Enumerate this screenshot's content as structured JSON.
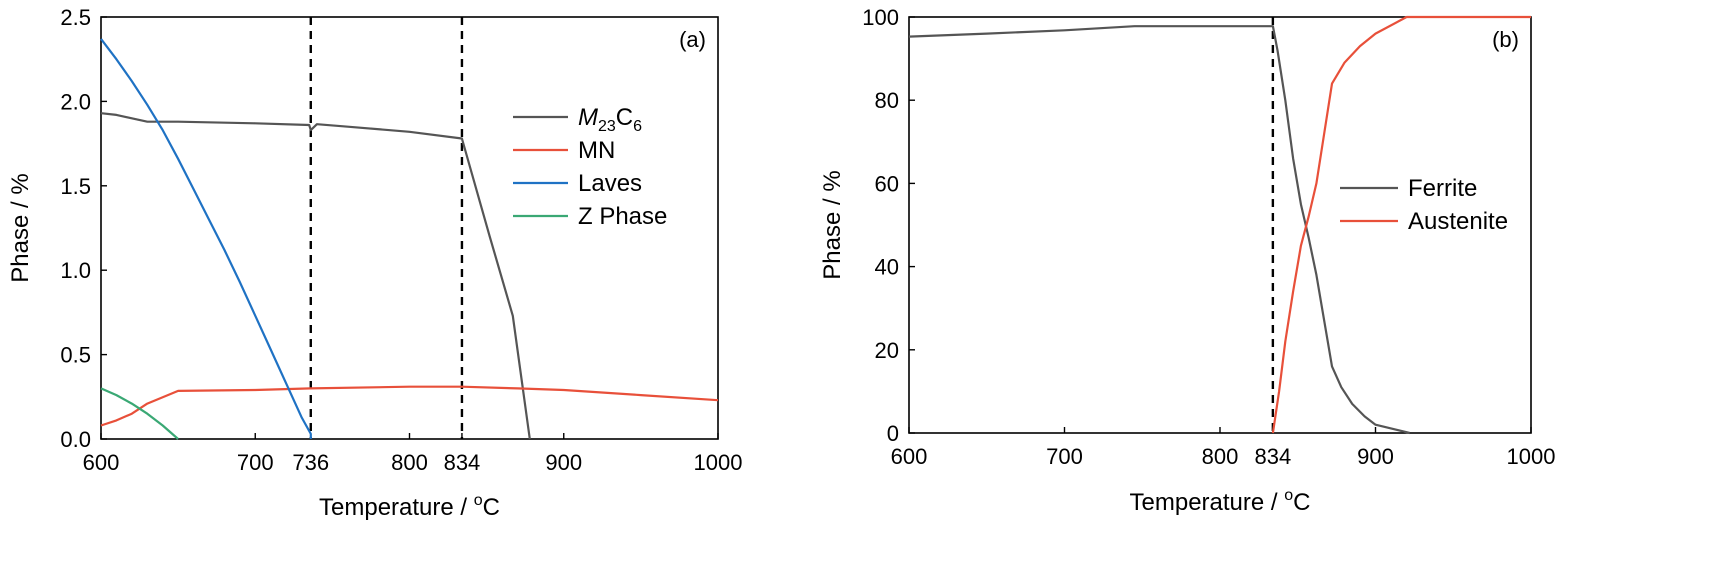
{
  "chart_data": [
    {
      "type": "line",
      "panel_label": "(a)",
      "xlabel": "Temperature / ",
      "xlabel_sup": "o",
      "xlabel_unit": "C",
      "ylabel": "Phase / %",
      "xlim": [
        600,
        1000
      ],
      "ylim": [
        0,
        2.5
      ],
      "xticks": [
        600,
        700,
        736,
        800,
        834,
        900,
        1000
      ],
      "yticks": [
        0.0,
        0.5,
        1.0,
        1.5,
        2.0,
        2.5
      ],
      "ytick_labels": [
        "0.0",
        "0.5",
        "1.0",
        "1.5",
        "2.0",
        "2.5"
      ],
      "dashed_lines_x": [
        736,
        834
      ],
      "legend_position": "right",
      "series": [
        {
          "name": "M23C6",
          "name_parts": {
            "main": "M",
            "sub1": "23",
            "mid": "C",
            "sub2": "6"
          },
          "color": "#555555",
          "points": [
            [
              600,
              1.93
            ],
            [
              610,
              1.92
            ],
            [
              620,
              1.9
            ],
            [
              630,
              1.88
            ],
            [
              650,
              1.88
            ],
            [
              700,
              1.87
            ],
            [
              735,
              1.86
            ],
            [
              736,
              1.83
            ],
            [
              740,
              1.865
            ],
            [
              760,
              1.85
            ],
            [
              800,
              1.82
            ],
            [
              834,
              1.78
            ],
            [
              852,
              1.2
            ],
            [
              867,
              0.73
            ],
            [
              878,
              0.0
            ]
          ]
        },
        {
          "name": "MN",
          "color": "#e8503a",
          "points": [
            [
              600,
              0.08
            ],
            [
              610,
              0.11
            ],
            [
              620,
              0.15
            ],
            [
              630,
              0.21
            ],
            [
              650,
              0.285
            ],
            [
              700,
              0.29
            ],
            [
              736,
              0.3
            ],
            [
              800,
              0.31
            ],
            [
              834,
              0.31
            ],
            [
              870,
              0.3
            ],
            [
              900,
              0.29
            ],
            [
              950,
              0.26
            ],
            [
              1000,
              0.23
            ]
          ]
        },
        {
          "name": "Laves",
          "color": "#1f72c4",
          "points": [
            [
              600,
              2.37
            ],
            [
              610,
              2.25
            ],
            [
              620,
              2.12
            ],
            [
              630,
              1.98
            ],
            [
              640,
              1.83
            ],
            [
              650,
              1.66
            ],
            [
              660,
              1.48
            ],
            [
              670,
              1.3
            ],
            [
              680,
              1.12
            ],
            [
              690,
              0.93
            ],
            [
              700,
              0.73
            ],
            [
              710,
              0.53
            ],
            [
              720,
              0.33
            ],
            [
              730,
              0.13
            ],
            [
              736,
              0.03
            ],
            [
              736,
              0.0
            ]
          ]
        },
        {
          "name": "Z Phase",
          "color": "#3aa874",
          "points": [
            [
              600,
              0.3
            ],
            [
              610,
              0.26
            ],
            [
              620,
              0.21
            ],
            [
              630,
              0.15
            ],
            [
              640,
              0.08
            ],
            [
              650,
              0.0
            ]
          ]
        }
      ]
    },
    {
      "type": "line",
      "panel_label": "(b)",
      "xlabel": "Temperature / ",
      "xlabel_sup": "o",
      "xlabel_unit": "C",
      "ylabel": "Phase / %",
      "xlim": [
        600,
        1000
      ],
      "ylim": [
        0,
        100
      ],
      "xticks": [
        600,
        700,
        800,
        834,
        900,
        1000
      ],
      "yticks": [
        0,
        20,
        40,
        60,
        80,
        100
      ],
      "ytick_labels": [
        "0",
        "20",
        "40",
        "60",
        "80",
        "100"
      ],
      "dashed_lines_x": [
        834
      ],
      "legend_position": "right",
      "series": [
        {
          "name": "Ferrite",
          "color": "#555555",
          "points": [
            [
              600,
              95.3
            ],
            [
              650,
              96.0
            ],
            [
              700,
              96.8
            ],
            [
              745,
              97.8
            ],
            [
              800,
              97.8
            ],
            [
              834,
              97.8
            ],
            [
              837,
              92
            ],
            [
              842,
              80
            ],
            [
              847,
              66
            ],
            [
              852,
              55
            ],
            [
              857,
              47
            ],
            [
              862,
              38
            ],
            [
              867,
              27
            ],
            [
              872,
              16
            ],
            [
              878,
              11
            ],
            [
              885,
              7
            ],
            [
              893,
              4
            ],
            [
              900,
              2
            ],
            [
              922,
              0
            ]
          ]
        },
        {
          "name": "Austenite",
          "color": "#e8503a",
          "points": [
            [
              834,
              0
            ],
            [
              838,
              10
            ],
            [
              842,
              22
            ],
            [
              847,
              34
            ],
            [
              852,
              45
            ],
            [
              857,
              52
            ],
            [
              862,
              60
            ],
            [
              867,
              72
            ],
            [
              872,
              84
            ],
            [
              880,
              89
            ],
            [
              890,
              93
            ],
            [
              900,
              96
            ],
            [
              920,
              100
            ],
            [
              1000,
              100
            ]
          ]
        }
      ]
    }
  ]
}
